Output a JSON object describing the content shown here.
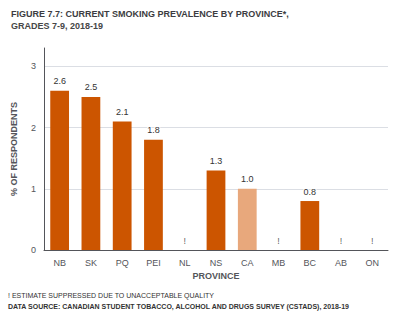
{
  "chart_data": {
    "type": "bar",
    "title": "FIGURE 7.7: CURRENT SMOKING PREVALENCE BY PROVINCE*,",
    "subtitle": "GRADES 7-9, 2018-19",
    "xlabel": "PROVINCE",
    "ylabel": "% OF RESPONDENTS",
    "categories": [
      "NB",
      "SK",
      "PQ",
      "PEI",
      "NL",
      "NS",
      "CA",
      "MB",
      "BC",
      "AB",
      "ON"
    ],
    "values": [
      2.6,
      2.5,
      2.1,
      1.8,
      null,
      1.3,
      1.0,
      null,
      0.8,
      null,
      null
    ],
    "value_labels": [
      "2.6",
      "2.5",
      "2.1",
      "1.8",
      null,
      "1.3",
      "1.0",
      null,
      "0.8",
      null,
      null
    ],
    "colors": [
      "#CC5500",
      "#CC5500",
      "#CC5500",
      "#CC5500",
      null,
      "#CC5500",
      "#E8A87C",
      null,
      "#CC5500",
      null,
      null
    ],
    "data_labels": true,
    "ylim": [
      0,
      3.3
    ],
    "yticks": [
      0,
      1,
      2,
      3
    ],
    "grid": true,
    "annotations": [
      {
        "text": "!",
        "x": "NL",
        "y": 0
      },
      {
        "text": "!",
        "x": "MB",
        "y": 0
      },
      {
        "text": "!",
        "x": "AB",
        "y": 0
      },
      {
        "text": "!",
        "x": "ON",
        "y": 0
      },
      {
        "text": "! ESTIMATE SUPPRESSED DUE TO UNACCEPTABLE QUALITY"
      },
      {
        "text": "DATA SOURCE: CANADIAN STUDENT TOBACCO, ALCOHOL AND DRUGS SURVEY (CSTADS), 2018-19"
      }
    ]
  }
}
